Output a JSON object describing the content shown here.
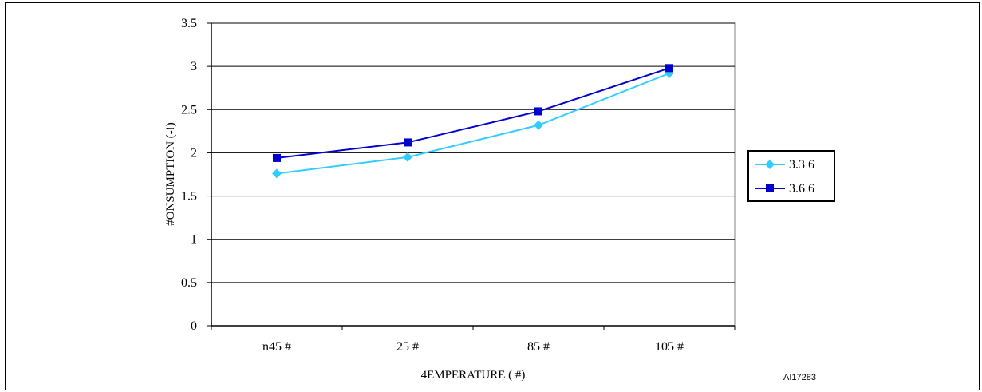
{
  "chart_data": {
    "type": "line",
    "categories": [
      "n45 #",
      "25 #",
      "85 #",
      "105 #"
    ],
    "series": [
      {
        "name": "3.3 6",
        "values": [
          1.76,
          1.95,
          2.32,
          2.92
        ],
        "color": "#33CCFF",
        "marker": "diamond"
      },
      {
        "name": "3.6 6",
        "values": [
          1.94,
          2.12,
          2.48,
          2.98
        ],
        "color": "#0000CC",
        "marker": "square"
      }
    ],
    "yticks": [
      "0",
      "0.5",
      "1",
      "1.5",
      "2",
      "2.5",
      "3",
      "3.5"
    ],
    "ylim": [
      0,
      3.5
    ],
    "xlabel": "4EMPERATURE ( #)",
    "ylabel": "#ONSUMPTION (-!)",
    "grid": true,
    "legend": "right"
  },
  "figure_ref": "AI17283"
}
